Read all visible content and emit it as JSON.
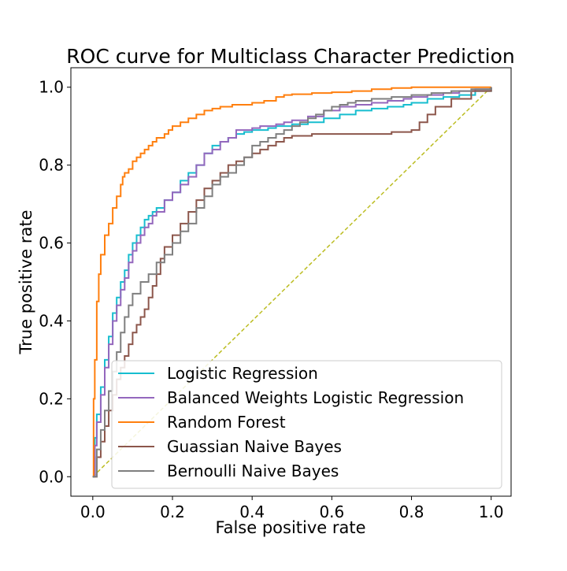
{
  "colors": {
    "logistic": "#17becf",
    "balanced": "#9467bd",
    "random_forest": "#ff7f0e",
    "gaussian": "#8c564b",
    "bernoulli": "#7f7f7f",
    "chance": "#bcbd22"
  },
  "chart_data": {
    "type": "line",
    "title": "ROC curve for Multiclass Character Prediction",
    "xlabel": "False positive rate",
    "ylabel": "True positive rate",
    "xlim": [
      -0.055,
      1.05
    ],
    "ylim": [
      -0.05,
      1.05
    ],
    "xticks": [
      0.0,
      0.2,
      0.4,
      0.6,
      0.8,
      1.0
    ],
    "xtick_labels": [
      "0.0",
      "0.2",
      "0.4",
      "0.6",
      "0.8",
      "1.0"
    ],
    "yticks": [
      0.0,
      0.2,
      0.4,
      0.6,
      0.8,
      1.0
    ],
    "ytick_labels": [
      "0.0",
      "0.2",
      "0.4",
      "0.6",
      "0.8",
      "1.0"
    ],
    "grid": false,
    "legend_position": "lower-right",
    "series": [
      {
        "name": "Logistic Regression",
        "color": "#17becf",
        "x": [
          0.0,
          0.005,
          0.01,
          0.02,
          0.03,
          0.04,
          0.05,
          0.06,
          0.07,
          0.08,
          0.09,
          0.1,
          0.11,
          0.12,
          0.13,
          0.14,
          0.15,
          0.16,
          0.18,
          0.2,
          0.22,
          0.24,
          0.26,
          0.28,
          0.3,
          0.32,
          0.34,
          0.36,
          0.38,
          0.4,
          0.42,
          0.44,
          0.46,
          0.48,
          0.5,
          0.54,
          0.58,
          0.62,
          0.66,
          0.7,
          0.74,
          0.78,
          0.8,
          0.84,
          0.88,
          0.92,
          0.96,
          1.0
        ],
        "y": [
          0.0,
          0.1,
          0.16,
          0.23,
          0.3,
          0.36,
          0.42,
          0.46,
          0.5,
          0.53,
          0.57,
          0.6,
          0.62,
          0.64,
          0.66,
          0.67,
          0.68,
          0.69,
          0.71,
          0.73,
          0.76,
          0.78,
          0.8,
          0.83,
          0.85,
          0.86,
          0.87,
          0.88,
          0.885,
          0.89,
          0.89,
          0.895,
          0.9,
          0.9,
          0.905,
          0.91,
          0.92,
          0.93,
          0.94,
          0.945,
          0.95,
          0.955,
          0.96,
          0.97,
          0.975,
          0.98,
          0.99,
          1.0
        ]
      },
      {
        "name": "Balanced Weights Logistic Regression",
        "color": "#9467bd",
        "x": [
          0.0,
          0.005,
          0.01,
          0.02,
          0.03,
          0.04,
          0.05,
          0.06,
          0.07,
          0.08,
          0.09,
          0.1,
          0.11,
          0.12,
          0.13,
          0.14,
          0.15,
          0.16,
          0.18,
          0.2,
          0.22,
          0.24,
          0.26,
          0.28,
          0.3,
          0.32,
          0.34,
          0.36,
          0.38,
          0.4,
          0.42,
          0.44,
          0.46,
          0.48,
          0.5,
          0.54,
          0.58,
          0.62,
          0.66,
          0.7,
          0.74,
          0.78,
          0.8,
          0.84,
          0.88,
          0.92,
          0.96,
          1.0
        ],
        "y": [
          0.0,
          0.08,
          0.14,
          0.21,
          0.28,
          0.34,
          0.4,
          0.44,
          0.48,
          0.51,
          0.55,
          0.58,
          0.6,
          0.62,
          0.64,
          0.65,
          0.67,
          0.68,
          0.71,
          0.73,
          0.75,
          0.77,
          0.8,
          0.83,
          0.84,
          0.86,
          0.87,
          0.89,
          0.89,
          0.895,
          0.9,
          0.9,
          0.905,
          0.91,
          0.915,
          0.925,
          0.94,
          0.95,
          0.955,
          0.96,
          0.965,
          0.97,
          0.975,
          0.98,
          0.985,
          0.99,
          0.995,
          1.0
        ]
      },
      {
        "name": "Random Forest",
        "color": "#ff7f0e",
        "x": [
          0.0,
          0.002,
          0.005,
          0.01,
          0.015,
          0.02,
          0.03,
          0.04,
          0.05,
          0.06,
          0.07,
          0.075,
          0.08,
          0.09,
          0.1,
          0.11,
          0.12,
          0.13,
          0.14,
          0.15,
          0.16,
          0.17,
          0.18,
          0.19,
          0.2,
          0.22,
          0.24,
          0.26,
          0.28,
          0.3,
          0.32,
          0.35,
          0.4,
          0.43,
          0.46,
          0.48,
          0.5,
          0.55,
          0.6,
          0.65,
          0.7,
          0.75,
          0.8,
          0.85,
          0.9,
          0.95,
          1.0
        ],
        "y": [
          0.0,
          0.2,
          0.3,
          0.45,
          0.52,
          0.57,
          0.62,
          0.65,
          0.69,
          0.72,
          0.75,
          0.77,
          0.78,
          0.79,
          0.81,
          0.82,
          0.83,
          0.84,
          0.85,
          0.86,
          0.87,
          0.87,
          0.88,
          0.89,
          0.9,
          0.91,
          0.92,
          0.93,
          0.94,
          0.945,
          0.95,
          0.955,
          0.96,
          0.965,
          0.975,
          0.98,
          0.982,
          0.985,
          0.987,
          0.99,
          0.995,
          0.998,
          1.0,
          1.0,
          1.0,
          1.0,
          1.0
        ]
      },
      {
        "name": "Guassian Naive Bayes",
        "color": "#8c564b",
        "x": [
          0.0,
          0.01,
          0.02,
          0.03,
          0.04,
          0.05,
          0.06,
          0.07,
          0.08,
          0.09,
          0.1,
          0.11,
          0.12,
          0.13,
          0.14,
          0.15,
          0.16,
          0.17,
          0.18,
          0.2,
          0.22,
          0.24,
          0.26,
          0.28,
          0.3,
          0.32,
          0.34,
          0.36,
          0.38,
          0.4,
          0.42,
          0.44,
          0.46,
          0.48,
          0.5,
          0.55,
          0.6,
          0.65,
          0.7,
          0.75,
          0.8,
          0.82,
          0.84,
          0.86,
          0.9,
          0.95,
          1.0
        ],
        "y": [
          0.0,
          0.05,
          0.09,
          0.13,
          0.17,
          0.21,
          0.25,
          0.28,
          0.31,
          0.34,
          0.37,
          0.39,
          0.41,
          0.43,
          0.46,
          0.49,
          0.52,
          0.56,
          0.59,
          0.62,
          0.65,
          0.68,
          0.71,
          0.74,
          0.76,
          0.78,
          0.8,
          0.81,
          0.82,
          0.83,
          0.84,
          0.85,
          0.86,
          0.87,
          0.875,
          0.88,
          0.88,
          0.88,
          0.88,
          0.885,
          0.89,
          0.91,
          0.93,
          0.95,
          0.97,
          0.99,
          1.0
        ]
      },
      {
        "name": "Bernoulli Naive Bayes",
        "color": "#7f7f7f",
        "x": [
          0.0,
          0.01,
          0.02,
          0.03,
          0.04,
          0.05,
          0.06,
          0.07,
          0.08,
          0.09,
          0.1,
          0.12,
          0.14,
          0.16,
          0.18,
          0.2,
          0.22,
          0.24,
          0.26,
          0.28,
          0.3,
          0.32,
          0.34,
          0.36,
          0.38,
          0.4,
          0.42,
          0.44,
          0.46,
          0.48,
          0.5,
          0.52,
          0.54,
          0.56,
          0.58,
          0.6,
          0.62,
          0.64,
          0.66,
          0.7,
          0.75,
          0.8,
          0.85,
          0.9,
          0.95,
          1.0
        ],
        "y": [
          0.0,
          0.07,
          0.12,
          0.17,
          0.22,
          0.27,
          0.32,
          0.37,
          0.41,
          0.44,
          0.47,
          0.5,
          0.52,
          0.55,
          0.57,
          0.6,
          0.63,
          0.65,
          0.69,
          0.72,
          0.75,
          0.77,
          0.78,
          0.8,
          0.82,
          0.85,
          0.86,
          0.87,
          0.88,
          0.89,
          0.9,
          0.91,
          0.92,
          0.93,
          0.94,
          0.95,
          0.955,
          0.96,
          0.965,
          0.97,
          0.975,
          0.98,
          0.985,
          0.99,
          0.995,
          1.0
        ]
      }
    ],
    "reference_line": {
      "color": "#bcbd22",
      "style": "dashed",
      "x": [
        0.0,
        1.0
      ],
      "y": [
        0.0,
        1.0
      ]
    }
  }
}
